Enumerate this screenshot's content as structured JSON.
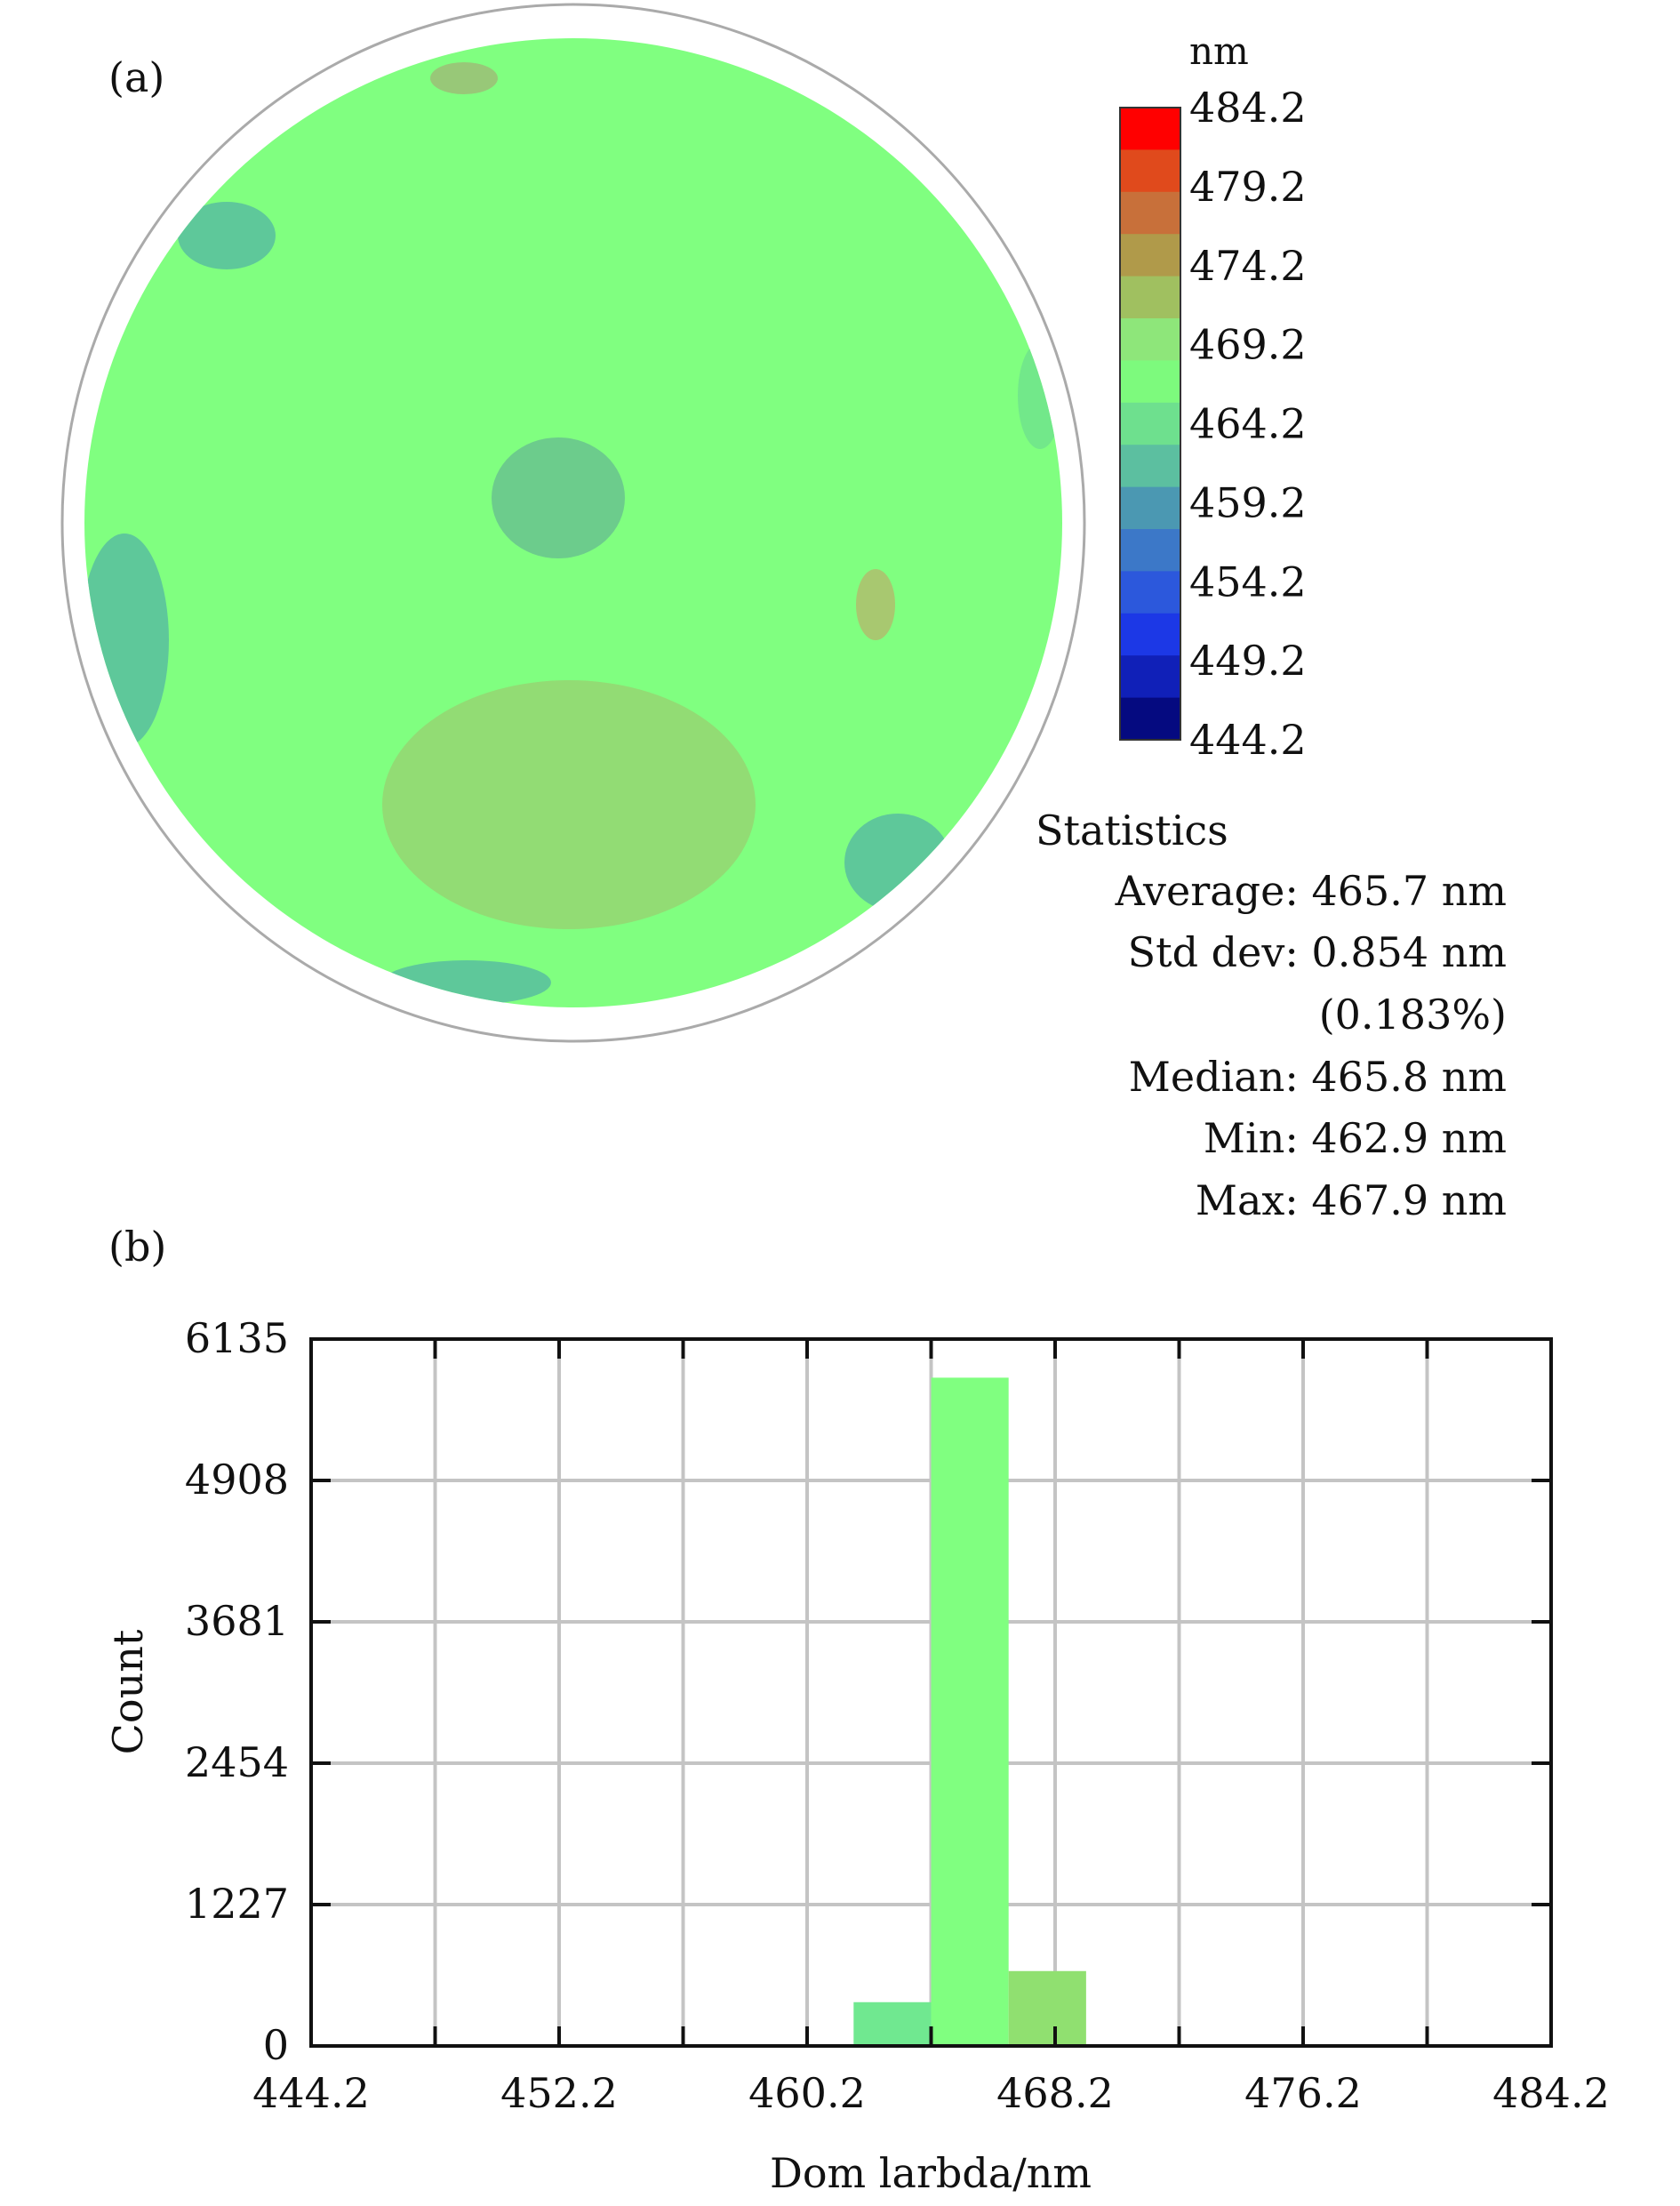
{
  "figure": {
    "panel_a_label": "(a)",
    "panel_b_label": "(b)"
  },
  "wafer_map": {
    "colorbar": {
      "unit": "nm",
      "ticks": [
        "484.2",
        "479.2",
        "474.2",
        "469.2",
        "464.2",
        "459.2",
        "454.2",
        "449.2",
        "444.2"
      ],
      "colors": [
        "#ff0000",
        "#e04a1c",
        "#c8703a",
        "#b09a4a",
        "#a0c060",
        "#8ee67a",
        "#7dfa7d",
        "#6ee08e",
        "#5cbfa0",
        "#4b98b2",
        "#3c78c8",
        "#2c58dc",
        "#1c38e6",
        "#1020b8",
        "#050a80"
      ],
      "color_names": [
        "red",
        "orange-red",
        "orange",
        "olive",
        "yellow-green",
        "light-green",
        "green",
        "mint",
        "teal",
        "steel-blue",
        "blue",
        "royal-blue",
        "bright-blue",
        "deep-blue",
        "navy"
      ]
    },
    "map_colors": {
      "base": "#80ff80",
      "outline": "#aaaaaa",
      "center_spot": "#6ccc8c",
      "edge_teal": "#5ec89a",
      "edge_mint": "#72e88a",
      "lower_blob": "#92dc74",
      "small_olive": "#a8c870",
      "top_olive": "#98c878"
    },
    "statistics": {
      "heading": "Statistics",
      "lines": [
        "Average: 465.7 nm",
        "Std dev: 0.854 nm",
        "(0.183%)",
        "Median: 465.8 nm",
        "Min: 462.9 nm",
        "Max: 467.9 nm"
      ]
    }
  },
  "chart_data": {
    "type": "bar",
    "title": "",
    "xlabel": "Dom larbda/nm",
    "ylabel": "Count",
    "xlim": [
      444.2,
      484.2
    ],
    "ylim": [
      0,
      6135
    ],
    "x_ticks": [
      444.2,
      452.2,
      460.2,
      468.2,
      476.2,
      484.2
    ],
    "x_tick_labels": [
      "444.2",
      "452.2",
      "460.2",
      "468.2",
      "476.2",
      "484.2"
    ],
    "y_ticks": [
      0,
      1227,
      2454,
      3681,
      4908,
      6135
    ],
    "y_tick_labels": [
      "0",
      "1227",
      "2454",
      "3681",
      "4908",
      "6135"
    ],
    "grid": true,
    "bars": [
      {
        "x_start": 461.7,
        "x_end": 464.2,
        "value": 380,
        "color": "#70e890"
      },
      {
        "x_start": 464.2,
        "x_end": 466.7,
        "value": 5800,
        "color": "#80ff80"
      },
      {
        "x_start": 466.7,
        "x_end": 469.2,
        "value": 650,
        "color": "#90e070"
      }
    ]
  }
}
